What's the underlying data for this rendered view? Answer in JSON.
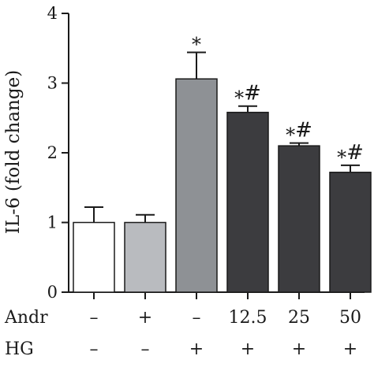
{
  "chart_data": {
    "type": "bar",
    "ylabel": "IL-6 (fold change)",
    "ylim": [
      0,
      4
    ],
    "yticks": [
      0,
      1,
      2,
      3,
      4
    ],
    "grid": false,
    "legend": "none",
    "bars": [
      {
        "value": 1.0,
        "error": 0.22,
        "fill": "#ffffff",
        "annotation": ""
      },
      {
        "value": 1.0,
        "error": 0.11,
        "fill": "#b9bbbf",
        "annotation": ""
      },
      {
        "value": 3.06,
        "error": 0.38,
        "fill": "#8e9195",
        "annotation": "*"
      },
      {
        "value": 2.58,
        "error": 0.09,
        "fill": "#3c3c3f",
        "annotation": "*#"
      },
      {
        "value": 2.1,
        "error": 0.04,
        "fill": "#3c3c3f",
        "annotation": "*#"
      },
      {
        "value": 1.72,
        "error": 0.1,
        "fill": "#3c3c3f",
        "annotation": "*#"
      }
    ],
    "conditions": [
      {
        "label": "Andr",
        "values": [
          "–",
          "+",
          "–",
          "12.5",
          "25",
          "50"
        ]
      },
      {
        "label": "HG",
        "values": [
          "–",
          "–",
          "+",
          "+",
          "+",
          "+"
        ]
      }
    ]
  }
}
